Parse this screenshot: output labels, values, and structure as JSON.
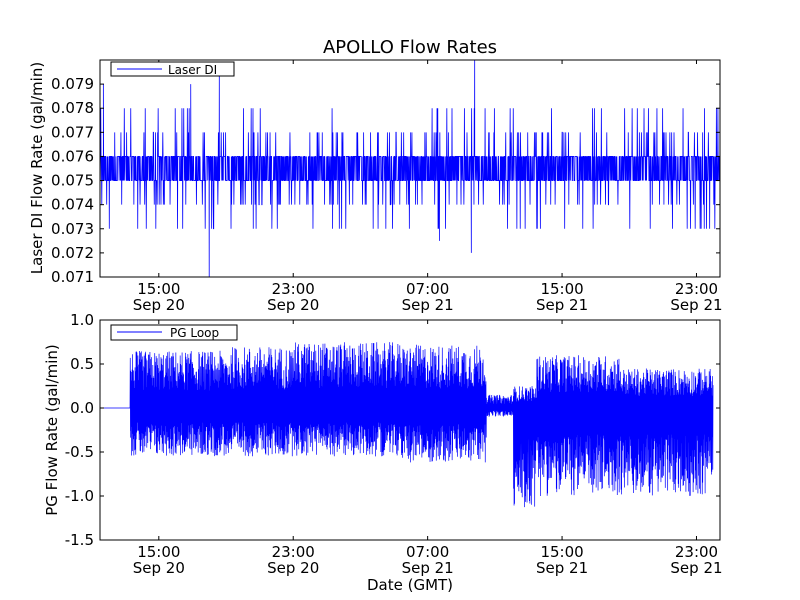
{
  "figure": {
    "title": "APOLLO Flow Rates",
    "line_color": "#0000ff"
  },
  "chart_data": [
    {
      "type": "line",
      "title": "APOLLO Flow Rates",
      "xlabel": "",
      "ylabel": "Laser DI Flow Rate (gal/min)",
      "x_range": [
        "2008-09-20 11:30",
        "2008-09-22 00:30"
      ],
      "ylim": [
        0.071,
        0.08
      ],
      "y_ticks": [
        "0.071",
        "0.072",
        "0.073",
        "0.074",
        "0.075",
        "0.076",
        "0.077",
        "0.078",
        "0.079"
      ],
      "y_tick_values": [
        0.071,
        0.072,
        0.073,
        0.074,
        0.075,
        0.076,
        0.077,
        0.078,
        0.079
      ],
      "x_ticks": [
        {
          "time": "15:00",
          "date": "Sep 20",
          "hours_from_start": 3.5
        },
        {
          "time": "23:00",
          "date": "Sep 20",
          "hours_from_start": 11.5
        },
        {
          "time": "07:00",
          "date": "Sep 21",
          "hours_from_start": 19.5
        },
        {
          "time": "15:00",
          "date": "Sep 21",
          "hours_from_start": 27.5
        },
        {
          "time": "23:00",
          "date": "Sep 21",
          "hours_from_start": 35.5
        }
      ],
      "legend": {
        "position": "upper-left",
        "entries": [
          "Laser DI"
        ]
      },
      "grid": false,
      "series": [
        {
          "name": "Laser DI",
          "color": "#0000ff",
          "description_values": {
            "typical_range": [
              0.075,
              0.076
            ],
            "frequent_spikes": [
              0.074,
              0.077
            ],
            "occasional": [
              0.073,
              0.078
            ],
            "rare_extremes": [
              {
                "hours_from_start": 0.2,
                "value": 0.079
              },
              {
                "hours_from_start": 5.4,
                "value": 0.079
              },
              {
                "hours_from_start": 6.5,
                "value": 0.071
              },
              {
                "hours_from_start": 7.1,
                "value": 0.0795
              },
              {
                "hours_from_start": 22.3,
                "value": 0.08
              },
              {
                "hours_from_start": 22.1,
                "value": 0.072
              },
              {
                "hours_from_start": 20.2,
                "value": 0.0725
              }
            ]
          }
        }
      ]
    },
    {
      "type": "line",
      "xlabel": "Date (GMT)",
      "ylabel": "PG Flow Rate (gal/min)",
      "x_range": [
        "2008-09-20 11:30",
        "2008-09-22 00:30"
      ],
      "ylim": [
        -1.5,
        1.0
      ],
      "y_ticks": [
        "-1.5",
        "-1.0",
        "-0.5",
        "0.0",
        "0.5",
        "1.0"
      ],
      "y_tick_values": [
        -1.5,
        -1.0,
        -0.5,
        0.0,
        0.5,
        1.0
      ],
      "x_ticks": [
        {
          "time": "15:00",
          "date": "Sep 20",
          "hours_from_start": 3.5
        },
        {
          "time": "23:00",
          "date": "Sep 20",
          "hours_from_start": 11.5
        },
        {
          "time": "07:00",
          "date": "Sep 21",
          "hours_from_start": 19.5
        },
        {
          "time": "15:00",
          "date": "Sep 21",
          "hours_from_start": 27.5
        },
        {
          "time": "23:00",
          "date": "Sep 21",
          "hours_from_start": 35.5
        }
      ],
      "legend": {
        "position": "upper-left",
        "entries": [
          "PG Loop"
        ]
      },
      "grid": false,
      "series": [
        {
          "name": "PG Loop",
          "color": "#0000ff",
          "segments": [
            {
              "from_hours": 0.0,
              "to_hours": 1.8,
              "value": 0.0,
              "noise": 0.0
            },
            {
              "from_hours": 1.8,
              "to_hours": 7.8,
              "upper": 0.65,
              "lower": -0.55
            },
            {
              "from_hours": 7.8,
              "to_hours": 11.5,
              "upper": 0.7,
              "lower": -0.55
            },
            {
              "from_hours": 11.5,
              "to_hours": 18.0,
              "upper": 0.75,
              "lower": -0.55
            },
            {
              "from_hours": 18.0,
              "to_hours": 23.0,
              "upper": 0.72,
              "lower": -0.62
            },
            {
              "from_hours": 23.0,
              "to_hours": 24.6,
              "upper": 0.15,
              "lower": -0.1
            },
            {
              "from_hours": 24.6,
              "to_hours": 26.0,
              "upper": 0.25,
              "lower": -1.15
            },
            {
              "from_hours": 26.0,
              "to_hours": 31.0,
              "upper": 0.6,
              "lower": -1.0
            },
            {
              "from_hours": 31.0,
              "to_hours": 36.5,
              "upper": 0.45,
              "lower": -1.0
            }
          ]
        }
      ]
    }
  ]
}
